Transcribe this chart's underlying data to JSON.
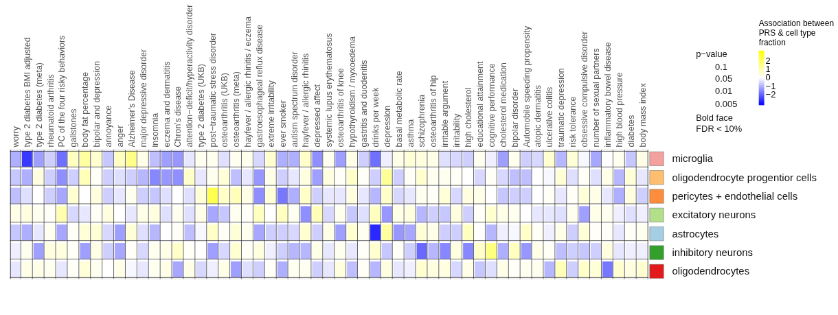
{
  "chart_data": {
    "type": "heatmap",
    "categories": [
      "worry",
      "type 2 diabetes BMI adjusted",
      "type 2 diabetes (meta)",
      "rheumatoid arthritis",
      "PC of the four risky behaviors",
      "gallstones",
      "body fat percentage",
      "bipolar and depression",
      "annoyance",
      "anger",
      "Alzheimer's Disease",
      "major depressive disorder",
      "insomnia",
      "eczema and dermatitis",
      "Chron's disease",
      "attention−deficit/hyperactivity disorder",
      "type 2 diabetes (UKB)",
      "post−traumatic stress disorder",
      "osteoarthritis (UKB)",
      "osteoarthritis (meta)",
      "hayfever / allergic rhinitis / eczema",
      "gastroesophageal reflux disease",
      "extreme irritability",
      "ever smoker",
      "autism spectrum disorder",
      "hayfever / allergic rhinitis",
      "depressed affect",
      "systemic lupus erythematosus",
      "osteoarthritis of knee",
      "hypothyroidism / myxoedema",
      "gastritis and duodenitis",
      "drinks per week",
      "depression",
      "basal metabolic rate",
      "asthma",
      "schizophrenia",
      "osteoarthritis of hip",
      "irritable argument",
      "irritability",
      "high cholesterol",
      "educational attainment",
      "cognitive performance",
      "cholesterol medication",
      "bipolar disorder",
      "Automobile speeding propensity",
      "atopic dermatitis",
      "ulcerative colitis",
      "traumatic depression",
      "risk tolerance",
      "obsessive compulsive disorder",
      "number of sexual partners",
      "inflammatory bowel disease",
      "high blood pressure",
      "diabetes",
      "body mass index"
    ],
    "y_categories": [
      "microglia",
      "oligodendrocyte progentior cells",
      "pericytes + endothelial cells",
      "excitatory neurons",
      "astrocytes",
      "inhibitory neurons",
      "oligodendrocytes"
    ],
    "colors": [
      "#f4a09c",
      "#fdbf6f",
      "#fd8d3c",
      "#b2df8a",
      "#a6cee3",
      "#33a02c",
      "#e31a1c"
    ],
    "cells": [
      [
        -1.0,
        -2.5,
        -1.2,
        -0.6,
        -1.8,
        0.8,
        1.2,
        0.6,
        -0.7,
        0.8,
        1.5,
        0.3,
        -0.8,
        -1.2,
        -1.3,
        -0.3,
        0.2,
        0.2,
        -0.4,
        0.2,
        0.2,
        -0.5,
        0.6,
        -1.0,
        -1.0,
        0.7,
        -1.4,
        0.2,
        -1.2,
        0.3,
        -0.6,
        -1.8,
        -0.2,
        0.3,
        0.5,
        0.4,
        0.3,
        -0.4,
        -0.5,
        -0.6,
        0.2,
        -0.2,
        -1.2,
        0.2,
        -0.6,
        -0.5,
        0.6,
        -0.9,
        0.5,
        -0.1,
        -1.1,
        null,
        0.2,
        -0.7,
        0.3
      ],
      [
        -0.7,
        -1.0,
        0.4,
        -0.6,
        -1.4,
        -0.6,
        0.9,
        0.1,
        -0.6,
        -0.4,
        -0.6,
        -0.9,
        -1.5,
        -1.3,
        -1.4,
        0.7,
        -0.3,
        0.2,
        0.5,
        -0.8,
        -0.3,
        -1.3,
        0.3,
        -0.6,
        -0.3,
        0.4,
        -1.2,
        0.4,
        0.1,
        0.7,
        0.1,
        -0.6,
        1.3,
        -0.6,
        0.1,
        0.6,
        0.2,
        0.2,
        0.1,
        null,
        -0.5,
        0.1,
        -0.5,
        -0.8,
        -0.8,
        null,
        -0.1,
        0.5,
        -0.4,
        0.1,
        -0.4,
        0.3,
        -0.9,
        0.5,
        -0.3
      ],
      [
        -0.8,
        -0.4,
        null,
        -0.6,
        -1.1,
        0.6,
        null,
        0.4,
        -0.6,
        -0.3,
        0.2,
        -0.6,
        -0.7,
        -0.4,
        null,
        -0.4,
        0.5,
        2.2,
        0.7,
        0.9,
        0.3,
        -1.4,
        0.5,
        -1.7,
        -1.0,
        0.7,
        -0.6,
        -0.3,
        -0.3,
        0.4,
        -0.3,
        -0.9,
        0.7,
        -0.5,
        -0.3,
        0.2,
        0.1,
        0.5,
        -0.5,
        0.4,
        0.3,
        null,
        -0.7,
        -0.6,
        -0.6,
        null,
        0.1,
        -0.3,
        0.1,
        0.5,
        0.3,
        -0.3,
        -1.0,
        0.4,
        -0.6
      ],
      [
        0.3,
        0.4,
        0.2,
        0.1,
        1.0,
        -0.5,
        -0.3,
        0.1,
        0.4,
        null,
        -0.3,
        0.3,
        0.4,
        -0.4,
        0.2,
        -0.4,
        0.3,
        -1.1,
        -0.7,
        0.2,
        0.1,
        0.8,
        null,
        0.8,
        0.2,
        -1.4,
        0.9,
        -0.5,
        0.2,
        -0.7,
        -0.4,
        0.8,
        -1.3,
        0.3,
        0.4,
        -0.9,
        -0.6,
        -0.7,
        0.4,
        -0.6,
        0.1,
        0.6,
        0.3,
        0.2,
        null,
        -0.3,
        -0.3,
        -0.4,
        0.2,
        -1.2,
        0.3,
        0.2,
        -0.2,
        -0.4,
        -0.2
      ],
      [
        -0.7,
        -1.0,
        -0.3,
        0.2,
        -1.1,
        0.1,
        0.5,
        0.5,
        -0.5,
        -1.2,
        0.5,
        -0.4,
        -0.9,
        null,
        0.1,
        -0.8,
        -0.1,
        0.7,
        0.1,
        0.5,
        0.2,
        -1.1,
        -0.6,
        -0.6,
        -0.5,
        0.6,
        -0.6,
        0.3,
        -1.2,
        0.6,
        0.2,
        -2.7,
        1.2,
        -1.3,
        -1.1,
        0.5,
        0.3,
        -0.6,
        -0.6,
        0.8,
        null,
        -0.9,
        -0.2,
        -0.1,
        0.7,
        0.1,
        -0.2,
        0.3,
        -0.6,
        0.5,
        0.1,
        0.1,
        -0.3,
        0.1,
        0.2
      ],
      [
        -0.2,
        0.2,
        -1.2,
        0.4,
        0.4,
        0.1,
        -1.2,
        0.3,
        -0.6,
        -1.1,
        0.1,
        -0.5,
        0.2,
        0.3,
        0.7,
        0.1,
        null,
        -1.2,
        -0.5,
        0.6,
        0.1,
        0.4,
        -0.2,
        -0.6,
        -0.9,
        -0.9,
        0.3,
        -0.3,
        0.2,
        -0.3,
        0.1,
        0.6,
        -0.7,
        0.1,
        -0.6,
        -1.9,
        -0.9,
        -1.5,
        0.4,
        -1.5,
        0.7,
        1.6,
        -1.0,
        0.8,
        -1.3,
        0.3,
        0.1,
        -0.8,
        -0.6,
        -0.7,
        -0.6,
        0.4,
        -0.3,
        -0.2,
        -0.2
      ],
      [
        -0.3,
        0.3,
        0.3,
        0.2,
        -0.3,
        0.1,
        0.5,
        0.2,
        null,
        0.3,
        -0.1,
        -0.3,
        0.2,
        0.3,
        -1.1,
        0.3,
        -0.5,
        -0.2,
        0.3,
        -1.2,
        -0.4,
        -0.6,
        0.1,
        -1.0,
        0.2,
        0.2,
        -0.6,
        -0.3,
        0.4,
        -0.8,
        0.1,
        -0.9,
        0.4,
        -0.3,
        -0.2,
        0.6,
        0.4,
        0.4,
        -0.5,
        0.3,
        -0.7,
        -0.4,
        0.3,
        0.1,
        0.2,
        0.2,
        -0.9,
        0.9,
        -0.6,
        0.7,
        0.5,
        -1.7,
        0.6,
        0.4,
        0.6
      ]
    ],
    "clabel": "Association between PRS & cell type fraction",
    "clim": [
      -3.2,
      3.2
    ],
    "cticks": [
      2,
      1,
      0,
      -1,
      -2
    ],
    "grid": true,
    "annotations": [
      "p−value",
      "0.1",
      "0.05",
      "0.01",
      "0.005",
      "Bold face FDR < 10%"
    ]
  }
}
